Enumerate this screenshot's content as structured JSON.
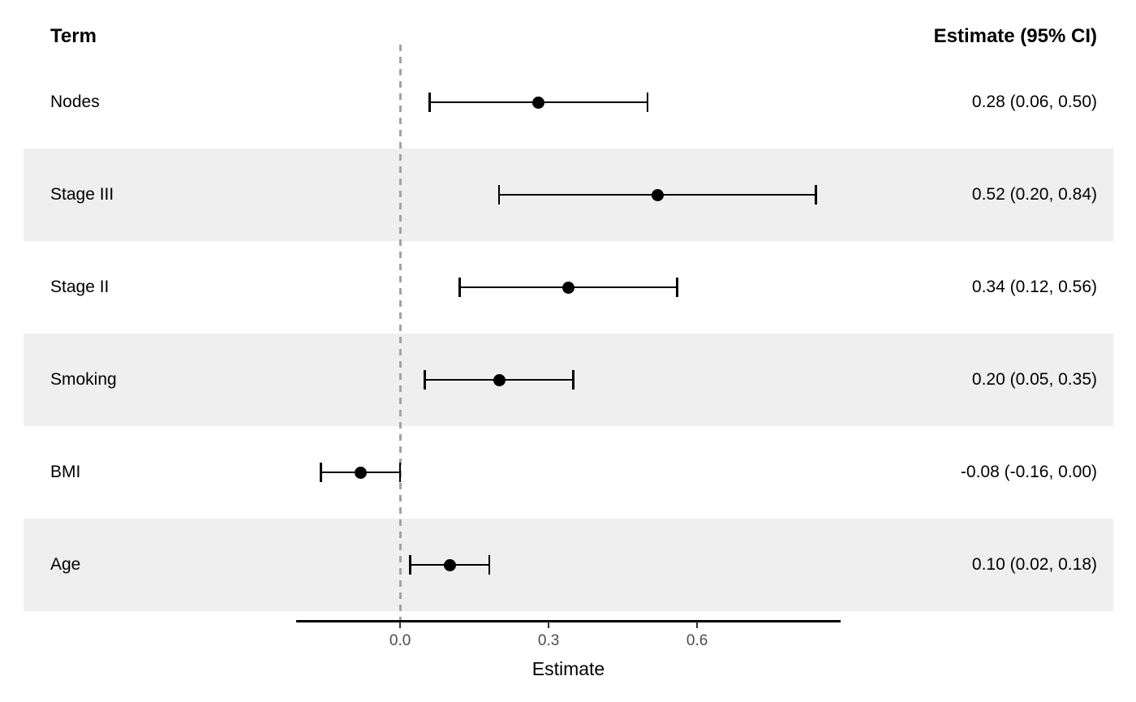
{
  "chart_data": {
    "type": "forest",
    "term_header": "Term",
    "estimate_header": "Estimate (95% CI)",
    "xlabel": "Estimate",
    "xlim": [
      -0.21,
      0.89
    ],
    "reference_line": 0.0,
    "grid": false,
    "x_ticks": [
      {
        "value": 0.0,
        "label": "0.0"
      },
      {
        "value": 0.3,
        "label": "0.3"
      },
      {
        "value": 0.6,
        "label": "0.6"
      }
    ],
    "rows": [
      {
        "term": "Nodes",
        "estimate": 0.28,
        "ci_low": 0.06,
        "ci_high": 0.5,
        "value_label": "0.28 (0.06, 0.50)",
        "striped": false
      },
      {
        "term": "Stage III",
        "estimate": 0.52,
        "ci_low": 0.2,
        "ci_high": 0.84,
        "value_label": "0.52 (0.20, 0.84)",
        "striped": true
      },
      {
        "term": "Stage II",
        "estimate": 0.34,
        "ci_low": 0.12,
        "ci_high": 0.56,
        "value_label": "0.34 (0.12, 0.56)",
        "striped": false
      },
      {
        "term": "Smoking",
        "estimate": 0.2,
        "ci_low": 0.05,
        "ci_high": 0.35,
        "value_label": "0.20 (0.05, 0.35)",
        "striped": true
      },
      {
        "term": "BMI",
        "estimate": -0.08,
        "ci_low": -0.16,
        "ci_high": 0.0,
        "value_label": "-0.08 (-0.16, 0.00)",
        "striped": false
      },
      {
        "term": "Age",
        "estimate": 0.1,
        "ci_low": 0.02,
        "ci_high": 0.18,
        "value_label": "0.10 (0.02, 0.18)",
        "striped": true
      }
    ],
    "colors": {
      "stripe": "#efefef",
      "reference_line": "#a3a3a3",
      "marker": "#000000",
      "ci": "#000000",
      "axis_line": "#000000",
      "tick_mark": "#333333",
      "tick_label": "#4d4d4d"
    }
  }
}
